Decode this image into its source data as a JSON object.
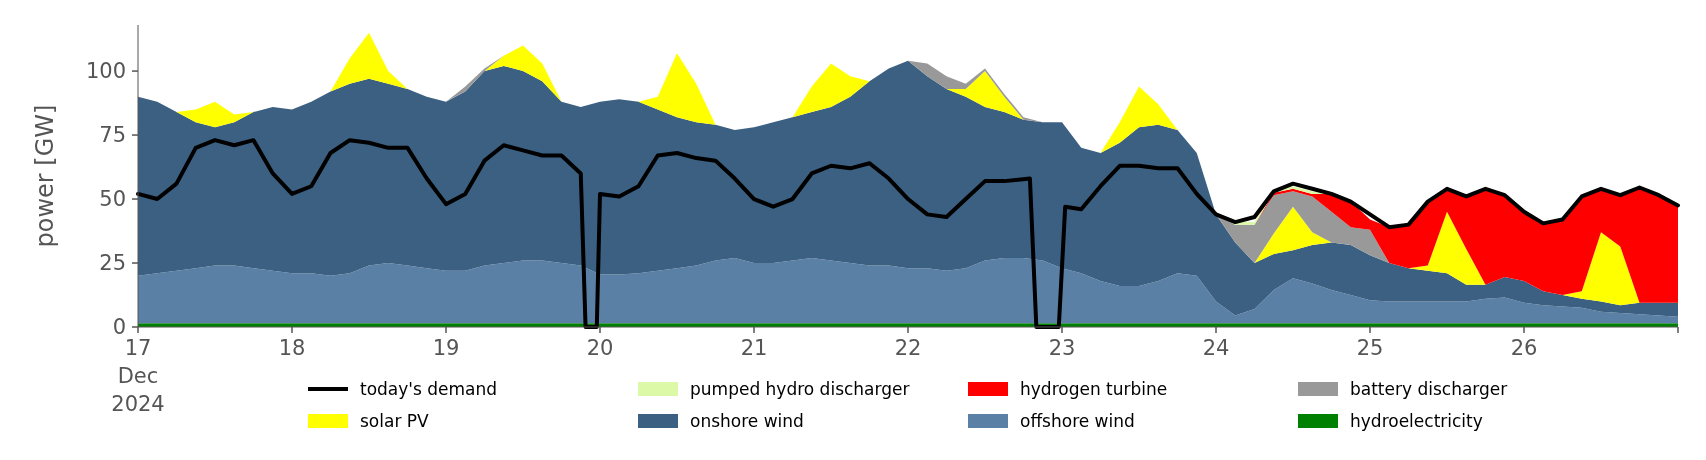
{
  "chart_data": {
    "type": "area",
    "stacked": true,
    "ylabel": "power [GW]",
    "ylim": [
      0,
      118
    ],
    "yticks": [
      0,
      25,
      50,
      75,
      100
    ],
    "xlim": [
      "2024-12-17T00:00",
      "2024-12-27T00:00"
    ],
    "xticks": [
      {
        "value": "2024-12-17T00:00",
        "label": "17\nDec\n2024"
      },
      {
        "value": "2024-12-18T00:00",
        "label": "18"
      },
      {
        "value": "2024-12-19T00:00",
        "label": "19"
      },
      {
        "value": "2024-12-20T00:00",
        "label": "20"
      },
      {
        "value": "2024-12-21T00:00",
        "label": "21"
      },
      {
        "value": "2024-12-22T00:00",
        "label": "22"
      },
      {
        "value": "2024-12-23T00:00",
        "label": "23"
      },
      {
        "value": "2024-12-24T00:00",
        "label": "24"
      },
      {
        "value": "2024-12-25T00:00",
        "label": "25"
      },
      {
        "value": "2024-12-26T00:00",
        "label": "26"
      },
      {
        "value": "2024-12-27T00:00",
        "label": null
      }
    ],
    "legend": "bottom",
    "grid": false,
    "x": [
      "2024-12-17T00:00",
      "2024-12-17T03:00",
      "2024-12-17T06:00",
      "2024-12-17T09:00",
      "2024-12-17T12:00",
      "2024-12-17T15:00",
      "2024-12-17T18:00",
      "2024-12-17T21:00",
      "2024-12-18T00:00",
      "2024-12-18T03:00",
      "2024-12-18T06:00",
      "2024-12-18T09:00",
      "2024-12-18T12:00",
      "2024-12-18T15:00",
      "2024-12-18T18:00",
      "2024-12-18T21:00",
      "2024-12-19T00:00",
      "2024-12-19T03:00",
      "2024-12-19T06:00",
      "2024-12-19T09:00",
      "2024-12-19T12:00",
      "2024-12-19T15:00",
      "2024-12-19T18:00",
      "2024-12-19T21:00",
      "2024-12-20T00:00",
      "2024-12-20T03:00",
      "2024-12-20T06:00",
      "2024-12-20T09:00",
      "2024-12-20T12:00",
      "2024-12-20T15:00",
      "2024-12-20T18:00",
      "2024-12-20T21:00",
      "2024-12-21T00:00",
      "2024-12-21T03:00",
      "2024-12-21T06:00",
      "2024-12-21T09:00",
      "2024-12-21T12:00",
      "2024-12-21T15:00",
      "2024-12-21T18:00",
      "2024-12-21T21:00",
      "2024-12-22T00:00",
      "2024-12-22T03:00",
      "2024-12-22T06:00",
      "2024-12-22T09:00",
      "2024-12-22T12:00",
      "2024-12-22T15:00",
      "2024-12-22T18:00",
      "2024-12-22T21:00",
      "2024-12-23T00:00",
      "2024-12-23T03:00",
      "2024-12-23T06:00",
      "2024-12-23T09:00",
      "2024-12-23T12:00",
      "2024-12-23T15:00",
      "2024-12-23T18:00",
      "2024-12-23T21:00",
      "2024-12-24T00:00",
      "2024-12-24T03:00",
      "2024-12-24T06:00",
      "2024-12-24T09:00",
      "2024-12-24T12:00",
      "2024-12-24T15:00",
      "2024-12-24T18:00",
      "2024-12-24T21:00",
      "2024-12-25T00:00",
      "2024-12-25T03:00",
      "2024-12-25T06:00",
      "2024-12-25T09:00",
      "2024-12-25T12:00",
      "2024-12-25T15:00",
      "2024-12-25T18:00",
      "2024-12-25T21:00",
      "2024-12-26T00:00",
      "2024-12-26T03:00",
      "2024-12-26T06:00",
      "2024-12-26T09:00",
      "2024-12-26T12:00",
      "2024-12-26T15:00",
      "2024-12-26T18:00",
      "2024-12-26T21:00",
      "2024-12-27T00:00"
    ],
    "series": [
      {
        "name": "hydroelectricity",
        "color": "#008000",
        "values": [
          1.5,
          1.5,
          1.5,
          1.5,
          1.5,
          1.5,
          1.5,
          1.5,
          1.5,
          1.5,
          1.5,
          1.5,
          1.5,
          1.5,
          1.5,
          1.5,
          1.5,
          1.5,
          1.5,
          1.5,
          1.5,
          1.5,
          1.5,
          1.5,
          1.5,
          1.5,
          1.5,
          1.5,
          1.5,
          1.5,
          1.5,
          1.5,
          1.5,
          1.5,
          1.5,
          1.5,
          1.5,
          1.5,
          1.5,
          1.5,
          1.5,
          1.5,
          1.5,
          1.5,
          1.5,
          1.5,
          1.5,
          1.5,
          1.5,
          1.5,
          1.5,
          1.5,
          1.5,
          1.5,
          1.5,
          1.5,
          1.5,
          1.5,
          1.5,
          1.5,
          1.5,
          1.5,
          1.5,
          1.5,
          1.5,
          1.5,
          1.5,
          1.5,
          1.5,
          1.5,
          1.5,
          1.5,
          1.5,
          1.5,
          1.5,
          1.5,
          1.5,
          1.5,
          1.5,
          1.5,
          1.5
        ]
      },
      {
        "name": "offshore wind",
        "color": "#5b80a5",
        "values": [
          18.5,
          19.5,
          20.5,
          21.5,
          22.5,
          22.5,
          21.5,
          20.5,
          19.5,
          19.5,
          18.5,
          19.5,
          22.5,
          23.5,
          22.5,
          21.5,
          20.5,
          20.5,
          22.5,
          23.5,
          24.5,
          24.5,
          23.5,
          22.5,
          19,
          19,
          19.5,
          20.5,
          21.5,
          22.5,
          24.5,
          25.5,
          23.5,
          23.5,
          24.5,
          25.5,
          24.5,
          23.5,
          22.5,
          22.5,
          21.5,
          21.5,
          20.5,
          21.5,
          24.5,
          25.5,
          25.5,
          24.5,
          21.5,
          19.5,
          16.5,
          14.5,
          14.5,
          16.5,
          19.5,
          18.5,
          8.5,
          3,
          5.5,
          13,
          17.5,
          15.5,
          13,
          11,
          9,
          8.5,
          8.5,
          8.5,
          8.5,
          8.5,
          9.5,
          10,
          8,
          7,
          6.5,
          6,
          4.5,
          4,
          3.5,
          3,
          2.5
        ]
      },
      {
        "name": "onshore wind",
        "color": "#3b6082",
        "values": [
          70,
          67,
          62,
          57,
          54,
          56,
          61,
          64,
          64,
          67,
          72,
          74,
          73,
          70,
          69,
          67,
          66,
          70,
          76,
          77,
          74,
          70,
          63,
          62,
          67.5,
          68.5,
          67,
          63,
          59,
          56,
          53,
          50,
          53,
          55,
          56,
          57,
          60,
          65,
          72,
          77,
          81,
          75,
          71,
          67,
          60,
          57,
          54,
          54,
          57,
          49,
          50,
          56,
          62,
          61,
          56,
          48,
          34,
          28.5,
          18,
          14,
          11,
          15,
          18.5,
          19.5,
          17.5,
          15,
          13,
          12,
          11,
          6.5,
          5.5,
          8,
          8.5,
          5.5,
          4.5,
          3.5,
          4,
          3,
          4.5,
          5,
          5.5
        ]
      },
      {
        "name": "solar PV",
        "color": "#ffff00",
        "values": [
          null,
          null,
          0,
          5,
          10,
          3,
          0,
          null,
          null,
          null,
          0,
          10,
          18,
          5,
          0,
          null,
          null,
          null,
          0,
          4,
          10,
          7,
          0,
          null,
          null,
          null,
          0,
          5,
          25,
          15,
          0,
          null,
          null,
          null,
          0,
          10,
          17,
          8,
          0,
          null,
          null,
          null,
          0,
          3,
          14,
          6,
          0,
          null,
          null,
          null,
          0,
          8,
          16,
          8,
          0,
          null,
          null,
          null,
          0,
          8,
          17,
          5,
          0,
          null,
          null,
          null,
          0,
          2,
          24,
          14,
          0,
          null,
          null,
          null,
          0,
          3,
          27,
          23,
          0,
          null,
          null
        ]
      },
      {
        "name": "battery discharger",
        "color": "#999999",
        "values": [
          null,
          null,
          null,
          null,
          null,
          null,
          null,
          null,
          null,
          null,
          null,
          null,
          null,
          null,
          null,
          null,
          0,
          2,
          1,
          0,
          null,
          null,
          null,
          null,
          null,
          null,
          null,
          null,
          null,
          null,
          null,
          null,
          null,
          null,
          null,
          null,
          null,
          null,
          null,
          null,
          0,
          5,
          5,
          2,
          1,
          1,
          1,
          0,
          null,
          null,
          null,
          null,
          null,
          null,
          null,
          null,
          0,
          7,
          15,
          15,
          6,
          14,
          12,
          7,
          10,
          0,
          null,
          null,
          null,
          null,
          null,
          null,
          null,
          null,
          null,
          null,
          null,
          null,
          null,
          null,
          null
        ]
      },
      {
        "name": "hydrogen turbine",
        "color": "#ff0000",
        "values": [
          null,
          null,
          null,
          null,
          null,
          null,
          null,
          null,
          null,
          null,
          null,
          null,
          null,
          null,
          null,
          null,
          null,
          null,
          null,
          null,
          null,
          null,
          null,
          null,
          null,
          null,
          null,
          null,
          null,
          null,
          null,
          null,
          null,
          null,
          null,
          null,
          null,
          null,
          null,
          null,
          null,
          null,
          null,
          null,
          null,
          null,
          null,
          null,
          null,
          null,
          null,
          null,
          null,
          null,
          null,
          null,
          null,
          null,
          0,
          1,
          1,
          1,
          7,
          10,
          4,
          14,
          17,
          25,
          9,
          20.5,
          37.5,
          32,
          27,
          26.5,
          29.5,
          37,
          17,
          20,
          45,
          42,
          38
        ]
      },
      {
        "name": "pumped hydro discharger",
        "color": "#dcf9a8",
        "values": [
          null,
          null,
          null,
          null,
          null,
          null,
          null,
          null,
          null,
          null,
          null,
          null,
          null,
          null,
          null,
          null,
          null,
          null,
          null,
          null,
          null,
          null,
          null,
          null,
          null,
          null,
          null,
          null,
          null,
          null,
          null,
          null,
          null,
          null,
          null,
          null,
          null,
          null,
          null,
          null,
          null,
          null,
          null,
          null,
          null,
          null,
          null,
          null,
          null,
          null,
          null,
          null,
          null,
          null,
          null,
          null,
          0,
          1,
          1,
          1,
          1,
          1,
          0,
          null,
          null,
          null,
          null,
          null,
          null,
          null,
          null,
          null,
          null,
          null,
          null,
          null,
          null,
          null,
          null,
          null,
          null
        ]
      },
      {
        "name": "today's demand",
        "type": "line",
        "color": "#000000",
        "x": [
          "2024-12-17T00:00",
          "2024-12-17T03:00",
          "2024-12-17T06:00",
          "2024-12-17T09:00",
          "2024-12-17T12:00",
          "2024-12-17T15:00",
          "2024-12-17T18:00",
          "2024-12-17T21:00",
          "2024-12-18T00:00",
          "2024-12-18T03:00",
          "2024-12-18T06:00",
          "2024-12-18T09:00",
          "2024-12-18T12:00",
          "2024-12-18T15:00",
          "2024-12-18T18:00",
          "2024-12-18T21:00",
          "2024-12-19T00:00",
          "2024-12-19T03:00",
          "2024-12-19T06:00",
          "2024-12-19T09:00",
          "2024-12-19T12:00",
          "2024-12-19T15:00",
          "2024-12-19T18:00",
          "2024-12-19T21:00",
          "2024-12-19T21:45",
          "2024-12-19T23:30",
          "2024-12-20T00:00",
          "2024-12-20T03:00",
          "2024-12-20T06:00",
          "2024-12-20T09:00",
          "2024-12-20T12:00",
          "2024-12-20T15:00",
          "2024-12-20T18:00",
          "2024-12-20T21:00",
          "2024-12-21T00:00",
          "2024-12-21T03:00",
          "2024-12-21T06:00",
          "2024-12-21T09:00",
          "2024-12-21T12:00",
          "2024-12-21T15:00",
          "2024-12-21T18:00",
          "2024-12-21T21:00",
          "2024-12-22T00:00",
          "2024-12-22T03:00",
          "2024-12-22T06:00",
          "2024-12-22T09:00",
          "2024-12-22T12:00",
          "2024-12-22T15:00",
          "2024-12-22T19:00",
          "2024-12-22T20:00",
          "2024-12-22T23:30",
          "2024-12-23T00:30",
          "2024-12-23T03:00",
          "2024-12-23T06:00",
          "2024-12-23T09:00",
          "2024-12-23T12:00",
          "2024-12-23T15:00",
          "2024-12-23T18:00",
          "2024-12-23T21:00",
          "2024-12-24T00:00",
          "2024-12-24T03:00",
          "2024-12-24T06:00",
          "2024-12-24T09:00",
          "2024-12-24T12:00",
          "2024-12-24T15:00",
          "2024-12-24T18:00",
          "2024-12-24T21:00",
          "2024-12-25T00:00",
          "2024-12-25T03:00",
          "2024-12-25T06:00",
          "2024-12-25T09:00",
          "2024-12-25T12:00",
          "2024-12-25T15:00",
          "2024-12-25T18:00",
          "2024-12-25T21:00",
          "2024-12-26T00:00",
          "2024-12-26T03:00",
          "2024-12-26T06:00",
          "2024-12-26T09:00",
          "2024-12-26T12:00",
          "2024-12-26T15:00",
          "2024-12-26T18:00",
          "2024-12-26T21:00",
          "2024-12-27T00:00"
        ],
        "values": [
          52,
          50,
          56,
          70,
          73,
          71,
          73,
          60,
          52,
          55,
          68,
          73,
          72,
          70,
          70,
          58,
          48,
          52,
          65,
          71,
          69,
          67,
          67,
          60,
          0,
          0,
          52,
          51,
          55,
          67,
          68,
          66,
          65,
          58,
          50,
          47,
          50,
          60,
          63,
          62,
          64,
          58,
          50,
          44,
          43,
          50,
          57,
          57,
          58,
          0,
          0,
          47,
          46,
          55,
          63,
          63,
          62,
          62,
          52,
          44,
          41,
          43,
          53,
          56,
          54,
          52,
          49,
          44,
          39,
          40,
          49,
          54,
          51,
          54,
          51.5,
          45,
          40.5,
          42,
          51,
          54,
          51.5,
          54.5,
          51.5,
          47.5
        ]
      }
    ]
  }
}
